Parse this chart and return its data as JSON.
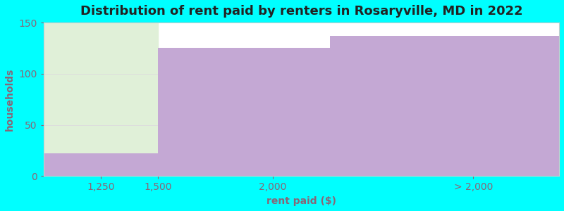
{
  "title": "Distribution of rent paid by renters in Rosaryville, MD in 2022",
  "xlabel": "rent paid ($)",
  "ylabel": "households",
  "background_color": "#00FFFF",
  "plot_bg_color": "#FFFFFF",
  "bars": [
    {
      "x0": 1000,
      "x1": 1500,
      "height": 22,
      "bar_color": "#C4A8D4",
      "bg_color": "#E0F0D8"
    },
    {
      "x0": 1500,
      "x1": 2250,
      "height": 125,
      "bar_color": "#C4A8D4",
      "bg_color": null
    },
    {
      "x0": 2250,
      "x1": 3250,
      "height": 137,
      "bar_color": "#C4A8D4",
      "bg_color": null
    }
  ],
  "xlim": [
    1000,
    3250
  ],
  "ylim": [
    0,
    150
  ],
  "xtick_positions": [
    1250,
    1500,
    2000,
    2875
  ],
  "xtick_labels": [
    "1,250",
    "1,500",
    "2,000",
    "> 2,000"
  ],
  "ytick_positions": [
    0,
    50,
    100,
    150
  ],
  "ytick_labels": [
    "0",
    "50",
    "100",
    "150"
  ],
  "title_fontsize": 13,
  "axis_label_fontsize": 10,
  "tick_fontsize": 10,
  "tick_color": "#886677",
  "label_color": "#886677",
  "title_color": "#222222",
  "grid_color": "#DDDDDD",
  "spine_color": "#CCCCCC"
}
